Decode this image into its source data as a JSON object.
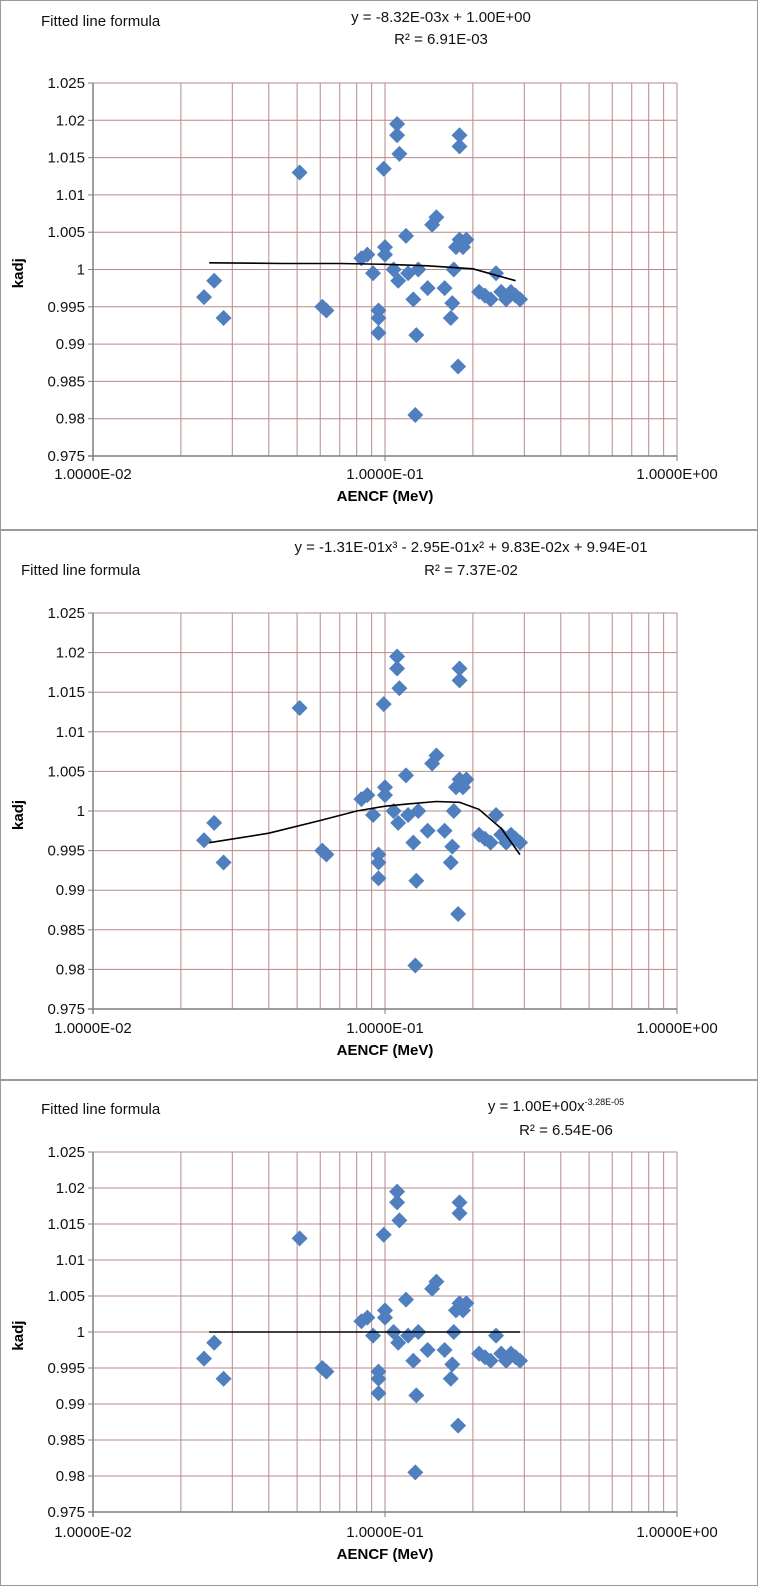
{
  "panels": [
    {
      "title": "Fitted line formula",
      "equation": "y = -8.32E-03x + 1.00E+00",
      "r2": "R² = 6.91E-03"
    },
    {
      "title": "Fitted line formula",
      "equation": "y = -1.31E-01x³ - 2.95E-01x² + 9.83E-02x + 9.94E-01",
      "r2": "R² = 7.37E-02"
    },
    {
      "title": "Fitted line formula",
      "equation_prefix": "y = 1.00E+00x",
      "equation_exponent": "-3.28E-05",
      "r2": "R² = 6.54E-06"
    }
  ],
  "colors": {
    "marker": "#4f7fbf",
    "gridline": "#b7898c",
    "axis": "#7f7f7f",
    "fit_line": "#000000"
  },
  "chart_data": [
    {
      "type": "scatter",
      "title": "",
      "xlabel": "AENCF (MeV)",
      "ylabel": "kadj",
      "xscale": "log",
      "xlim": [
        0.01,
        1.0
      ],
      "ylim": [
        0.975,
        1.025
      ],
      "x_tick_labels": [
        "1.0000E-02",
        "1.0000E-01",
        "1.0000E+00"
      ],
      "y_tick_labels": [
        "0.975",
        "0.98",
        "0.985",
        "0.99",
        "0.995",
        "1",
        "1.005",
        "1.01",
        "1.015",
        "1.02",
        "1.025"
      ],
      "grid": true,
      "fit": {
        "kind": "linear",
        "equation": "y = -8.32E-03x + 1.00E+00",
        "r2": "R² = 6.91E-03",
        "x": [
          0.025,
          0.045,
          0.07,
          0.1,
          0.14,
          0.2,
          0.28
        ],
        "y": [
          1.0009,
          1.0008,
          1.0008,
          1.0007,
          1.0005,
          1.0001,
          0.9985
        ]
      }
    },
    {
      "type": "scatter",
      "title": "",
      "xlabel": "AENCF (MeV)",
      "ylabel": "kadj",
      "xscale": "log",
      "xlim": [
        0.01,
        1.0
      ],
      "ylim": [
        0.975,
        1.025
      ],
      "x_tick_labels": [
        "1.0000E-02",
        "1.0000E-01",
        "1.0000E+00"
      ],
      "y_tick_labels": [
        "0.975",
        "0.98",
        "0.985",
        "0.99",
        "0.995",
        "1",
        "1.005",
        "1.01",
        "1.015",
        "1.02",
        "1.025"
      ],
      "grid": true,
      "fit": {
        "kind": "poly3",
        "equation": "y = -1.31E-01x³ - 2.95E-01x² + 9.83E-02x + 9.94E-01",
        "r2": "R² = 7.37E-02",
        "x": [
          0.025,
          0.04,
          0.06,
          0.08,
          0.1,
          0.12,
          0.15,
          0.18,
          0.21,
          0.25,
          0.29
        ],
        "y": [
          0.996,
          0.9972,
          0.9988,
          1.0,
          1.0006,
          1.0009,
          1.0012,
          1.0011,
          1.0002,
          0.9978,
          0.9945
        ]
      }
    },
    {
      "type": "scatter",
      "title": "",
      "xlabel": "AENCF (MeV)",
      "ylabel": "kadj",
      "xscale": "log",
      "xlim": [
        0.01,
        1.0
      ],
      "ylim": [
        0.975,
        1.025
      ],
      "x_tick_labels": [
        "1.0000E-02",
        "1.0000E-01",
        "1.0000E+00"
      ],
      "y_tick_labels": [
        "0.975",
        "0.98",
        "0.985",
        "0.99",
        "0.995",
        "1",
        "1.005",
        "1.01",
        "1.015",
        "1.02",
        "1.025"
      ],
      "grid": true,
      "fit": {
        "kind": "power",
        "equation": "y = 1.00E+00x^-3.28E-05",
        "r2": "R² = 6.54E-06",
        "x": [
          0.025,
          0.29
        ],
        "y": [
          1.0,
          1.0
        ]
      }
    }
  ],
  "shared_points": {
    "x": [
      0.024,
      0.026,
      0.028,
      0.051,
      0.061,
      0.063,
      0.083,
      0.087,
      0.091,
      0.095,
      0.095,
      0.095,
      0.099,
      0.1,
      0.1,
      0.107,
      0.11,
      0.11,
      0.111,
      0.112,
      0.118,
      0.12,
      0.125,
      0.127,
      0.128,
      0.13,
      0.14,
      0.145,
      0.15,
      0.16,
      0.168,
      0.17,
      0.172,
      0.175,
      0.178,
      0.18,
      0.18,
      0.18,
      0.185,
      0.19,
      0.21,
      0.22,
      0.23,
      0.24,
      0.25,
      0.26,
      0.27,
      0.28,
      0.29
    ],
    "y": [
      0.9963,
      0.9985,
      0.9935,
      1.013,
      0.995,
      0.9945,
      1.0015,
      1.002,
      0.9995,
      0.9915,
      0.9935,
      0.9945,
      1.0135,
      1.003,
      1.002,
      1.0,
      1.0195,
      1.018,
      0.9985,
      1.0155,
      1.0045,
      0.9995,
      0.996,
      0.9805,
      0.9912,
      1.0,
      0.9975,
      1.006,
      1.007,
      0.9975,
      0.9935,
      0.9955,
      1.0,
      1.003,
      0.987,
      1.018,
      1.0165,
      1.004,
      1.003,
      1.004,
      0.997,
      0.9965,
      0.996,
      0.9995,
      0.997,
      0.996,
      0.997,
      0.9965,
      0.996
    ]
  }
}
